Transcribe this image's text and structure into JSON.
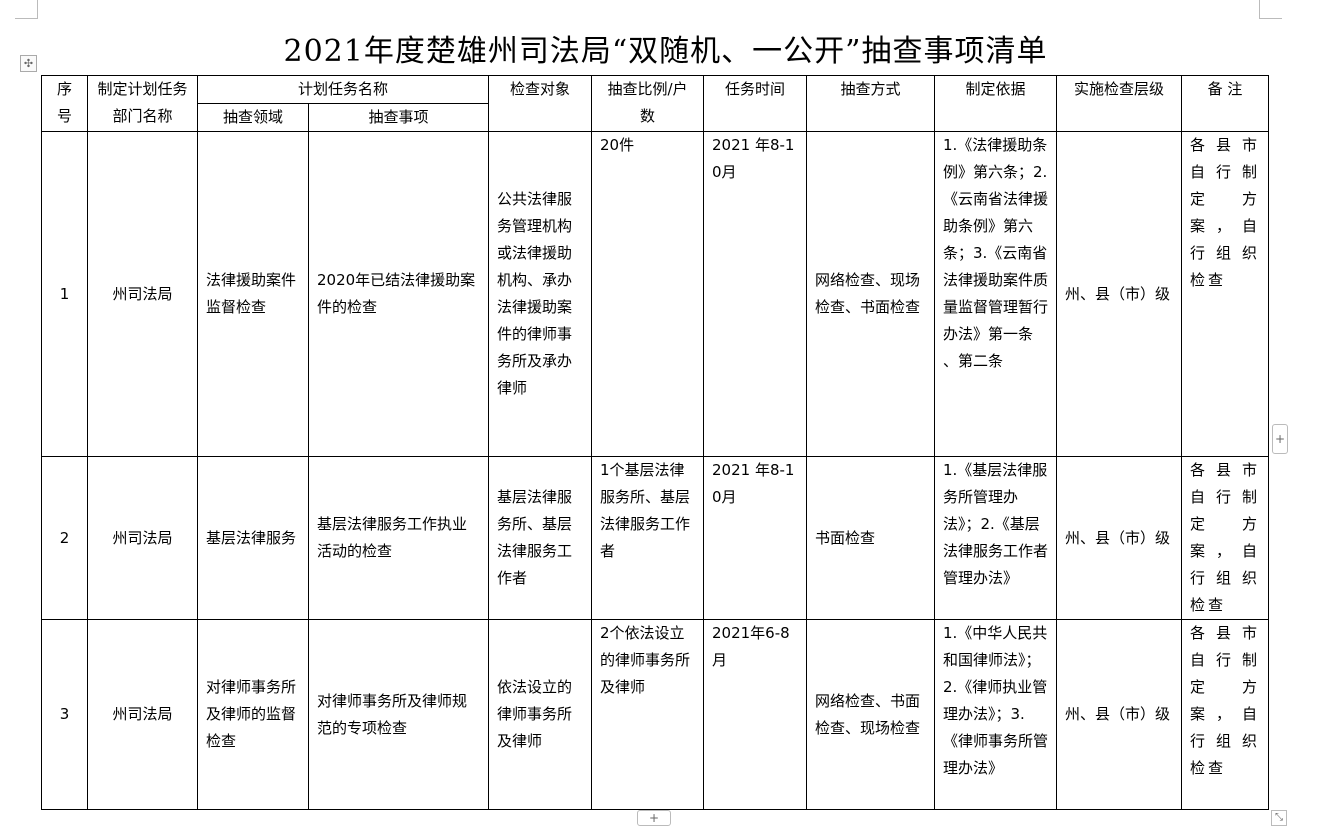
{
  "title": "2021年度楚雄州司法局“双随机、一公开”抽查事项清单",
  "headers": {
    "seq": "序号",
    "dept": "制定计划任务部门名称",
    "task_name": "计划任务名称",
    "area": "抽查领域",
    "item": "抽查事项",
    "object": "检查对象",
    "ratio": "抽查比例/户数",
    "time": "任务时间",
    "method": "抽查方式",
    "basis": "制定依据",
    "level": "实施检查层级",
    "note": "备 注"
  },
  "rows": [
    {
      "seq": "1",
      "dept": "州司法局",
      "area": "法律援助案件监督检查",
      "item": "2020年已结法律援助案件的检查",
      "object": "公共法律服务管理机构或法律援助机构、承办法律援助案件的律师事务所及承办律师",
      "ratio": "20件",
      "time": "2021 年8-10月",
      "method": "网络检查、现场检查、书面检查",
      "basis": "1.《法律援助条例》第六条；2.《云南省法律援助条例》第六条；3.《云南省法律援助案件质量监督管理暂行办法》第一条 、第二条",
      "level": "州、县（市）级",
      "note": "各县市自行制定方案，自行组织检查"
    },
    {
      "seq": "2",
      "dept": "州司法局",
      "area": "基层法律服务",
      "item": "基层法律服务工作执业活动的检查",
      "object": "基层法律服务所、基层法律服务工作者",
      "ratio": "1个基层法律服务所、基层法律服务工作者",
      "time": "2021 年8-10月",
      "method": "书面检查",
      "basis": "1.《基层法律服务所管理办法》；2.《基层法律服务工作者管理办法》",
      "level": "州、县（市）级",
      "note": "各县市自行制定方案，自行组织检查"
    },
    {
      "seq": "3",
      "dept": "州司法局",
      "area": "对律师事务所及律师的监督检查",
      "item": "对律师事务所及律师规范的专项检查",
      "object": "依法设立的律师事务所及律师",
      "ratio": "2个依法设立的律师事务所及律师",
      "time": "2021年6-8月",
      "method": "网络检查、书面检查、现场检查",
      "basis": "1.《中华人民共和国律师法》；2.《律师执业管理办法》；3.《律师事务所管理办法》",
      "level": "州、县（市）级",
      "note": "各县市自行制定方案，自行组织检查"
    }
  ],
  "controls": {
    "move_icon": "✣",
    "add": "+",
    "resize": "⤡"
  }
}
